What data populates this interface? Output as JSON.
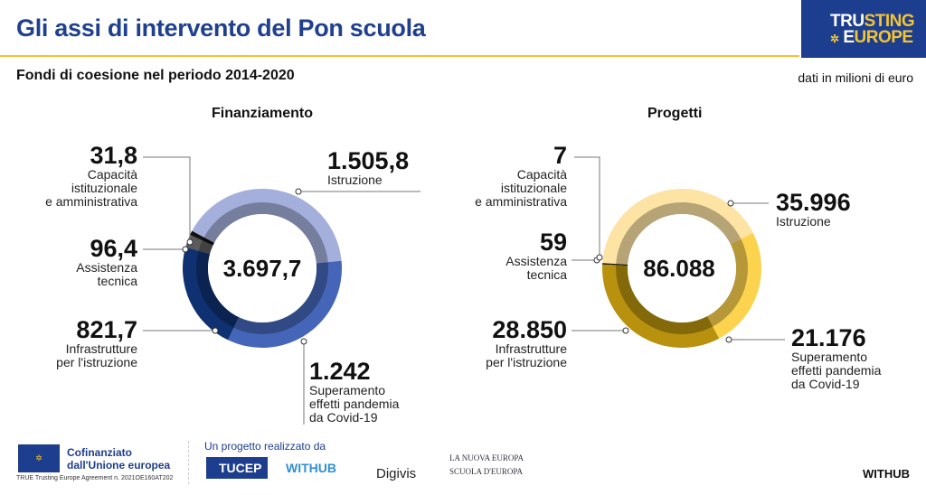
{
  "header": {
    "title": "Gli assi di intervento del Pon scuola",
    "brand_line1_a": "TRU",
    "brand_line1_b": "STING",
    "brand_line2_a": "E",
    "brand_line2_b": "UROPE"
  },
  "subtitle": "Fondi di coesione nel periodo 2014-2020",
  "unit_note": "dati in milioni di euro",
  "chart_data": [
    {
      "type": "pie",
      "title": "Finanziamento",
      "total_label": "3.697,7",
      "total": 3697.7,
      "start_angle_deg": -62,
      "slices": [
        {
          "name": "Istruzione",
          "label": [
            "Istruzione"
          ],
          "value": 1505.8,
          "value_label": "1.505,8",
          "color": "#a4afdc"
        },
        {
          "name": "Superamento effetti pandemia da Covid-19",
          "label": [
            "Superamento",
            "effetti pandemia",
            "da Covid-19"
          ],
          "value": 1242,
          "value_label": "1.242",
          "color": "#4566b8"
        },
        {
          "name": "Infrastrutture per l'istruzione",
          "label": [
            "Infrastrutture",
            "per l'istruzione"
          ],
          "value": 821.7,
          "value_label": "821,7",
          "color": "#0f3171"
        },
        {
          "name": "Assistenza tecnica",
          "label": [
            "Assistenza",
            "tecnica"
          ],
          "value": 96.4,
          "value_label": "96,4",
          "color": "#5b5b5b"
        },
        {
          "name": "Capacità istituzionale e amministrativa",
          "label": [
            "Capacità",
            "istituzionale",
            "e amministrativa"
          ],
          "value": 31.8,
          "value_label": "31,8",
          "color": "#111111"
        }
      ]
    },
    {
      "type": "pie",
      "title": "Progetti",
      "total_label": "86.088",
      "total": 86088,
      "start_angle_deg": -87,
      "slices": [
        {
          "name": "Istruzione",
          "label": [
            "Istruzione"
          ],
          "value": 35996,
          "value_label": "35.996",
          "color": "#fde4a4"
        },
        {
          "name": "Superamento effetti pandemia da Covid-19",
          "label": [
            "Superamento",
            "effetti pandemia",
            "da Covid-19"
          ],
          "value": 21176,
          "value_label": "21.176",
          "color": "#fcd34e"
        },
        {
          "name": "Infrastrutture per l'istruzione",
          "label": [
            "Infrastrutture",
            "per l'istruzione"
          ],
          "value": 28850,
          "value_label": "28.850",
          "color": "#b8920f"
        },
        {
          "name": "Assistenza tecnica",
          "label": [
            "Assistenza",
            "tecnica"
          ],
          "value": 59,
          "value_label": "59",
          "color": "#6b5a10"
        },
        {
          "name": "Capacità istituzionale e amministrativa",
          "label": [
            "Capacità",
            "istituzionale",
            "e amministrativa"
          ],
          "value": 7,
          "value_label": "7",
          "color": "#111111"
        }
      ]
    }
  ],
  "footer": {
    "eu_line1": "Cofinanziato",
    "eu_line2": "dall'Unione europea",
    "agreement": "TRUE Trusting Europe Agreement n. 2021OE160AT202",
    "realized_by": "Un progetto realizzato da",
    "tucep": "TUCEP",
    "withub": "WITHUB",
    "digivis": "Digivis",
    "nuova_europa_1": "LA NUOVA EUROPA",
    "nuova_europa_2": "SCUOLA D'EUROPA",
    "withub_right": "WITHUB"
  }
}
